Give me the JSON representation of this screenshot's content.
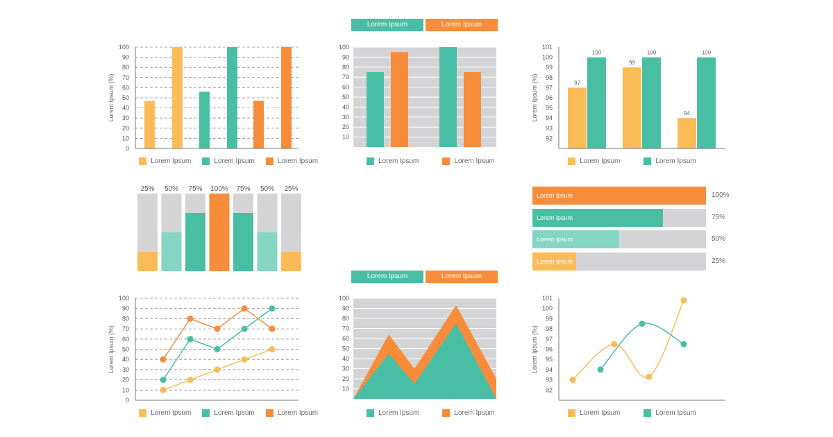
{
  "colors": {
    "yellow": "#fbbc57",
    "green": "#48bfa4",
    "orange": "#f78c3a",
    "lightgreen": "#84d5c3",
    "gray": "#d4d4d6",
    "grid": "#9a9a9a"
  },
  "chart_data": [
    {
      "id": "c1",
      "type": "bar",
      "ylabel": "Lorem Ipsum (%)",
      "ylim": [
        0,
        100
      ],
      "yticks": [
        0,
        10,
        20,
        30,
        40,
        50,
        60,
        70,
        80,
        90,
        100
      ],
      "grid": "dashed",
      "series": [
        {
          "name": "Lorem Ipsum",
          "color": "yellow",
          "values": [
            47,
            100
          ]
        },
        {
          "name": "Lorem Ipsum",
          "color": "green",
          "values": [
            56,
            100
          ]
        },
        {
          "name": "Lorem Ipsum",
          "color": "orange",
          "values": [
            47,
            100
          ]
        }
      ]
    },
    {
      "id": "c2",
      "type": "bar",
      "ylim": [
        0,
        100
      ],
      "yticks": [
        10,
        20,
        30,
        40,
        50,
        60,
        70,
        80,
        90,
        100
      ],
      "tabs": [
        "Lorem Ipsum",
        "Lorem Ipsum"
      ],
      "series": [
        {
          "name": "Lorem Ipsum",
          "color": "green",
          "values": [
            75,
            105
          ]
        },
        {
          "name": "Lorem Ipsum",
          "color": "orange",
          "values": [
            95,
            75
          ]
        }
      ]
    },
    {
      "id": "c3",
      "type": "bar",
      "ylabel": "Lorem Ipsum (%)",
      "ylim": [
        91,
        101
      ],
      "yticks": [
        92,
        93,
        94,
        95,
        96,
        97,
        98,
        99,
        100,
        101
      ],
      "series": [
        {
          "name": "Lorem Ipsum",
          "color": "yellow",
          "values": [
            97,
            99,
            94
          ]
        },
        {
          "name": "Lorem Ipsum",
          "color": "green",
          "values": [
            100,
            100,
            100
          ]
        }
      ]
    },
    {
      "id": "c4",
      "type": "bar",
      "stacked_percent": true,
      "bars": [
        {
          "label": "25%",
          "value": 25,
          "color": "yellow"
        },
        {
          "label": "50%",
          "value": 50,
          "color": "lightgreen"
        },
        {
          "label": "75%",
          "value": 75,
          "color": "green"
        },
        {
          "label": "100%",
          "value": 100,
          "color": "orange"
        },
        {
          "label": "75%",
          "value": 75,
          "color": "green"
        },
        {
          "label": "50%",
          "value": 50,
          "color": "lightgreen"
        },
        {
          "label": "25%",
          "value": 25,
          "color": "yellow"
        }
      ]
    },
    {
      "id": "c5",
      "type": "bar",
      "orientation": "horizontal",
      "bars": [
        {
          "label": "Lorem ipsum",
          "value": 100,
          "pct": "100%",
          "color": "orange"
        },
        {
          "label": "Lorem ipsum",
          "value": 75,
          "pct": "75%",
          "color": "green"
        },
        {
          "label": "Lorem ipsum",
          "value": 50,
          "pct": "50%",
          "color": "lightgreen"
        },
        {
          "label": "Lorem ipsum",
          "value": 25,
          "pct": "25%",
          "color": "yellow"
        }
      ]
    },
    {
      "id": "c6",
      "type": "line",
      "ylabel": "Lorem Ipsum (%)",
      "ylim": [
        0,
        100
      ],
      "yticks": [
        0,
        10,
        20,
        30,
        40,
        50,
        60,
        70,
        80,
        90,
        100
      ],
      "grid": "dashed",
      "series": [
        {
          "name": "Lorem Ipsum",
          "color": "yellow",
          "values": [
            10,
            20,
            30,
            40,
            50
          ]
        },
        {
          "name": "Lorem Ipsum",
          "color": "green",
          "values": [
            20,
            60,
            50,
            70,
            90
          ]
        },
        {
          "name": "Lorem Ipsum",
          "color": "orange",
          "values": [
            40,
            80,
            70,
            90,
            70
          ]
        }
      ]
    },
    {
      "id": "c7",
      "type": "area",
      "ylim": [
        0,
        100
      ],
      "yticks": [
        10,
        20,
        30,
        40,
        50,
        60,
        70,
        80,
        90,
        100
      ],
      "tabs": [
        "Lorem Ipsum",
        "Lorem Ipsum"
      ],
      "series": [
        {
          "name": "Lorem Ipsum",
          "color": "green",
          "values": [
            0,
            45,
            15,
            75,
            0
          ]
        },
        {
          "name": "Lorem Ipsum",
          "color": "orange",
          "values": [
            0,
            64,
            30,
            93,
            20
          ]
        }
      ]
    },
    {
      "id": "c8",
      "type": "line",
      "smooth": true,
      "ylabel": "Lorem Ipsum (%)",
      "ylim": [
        91,
        101
      ],
      "yticks": [
        92,
        93,
        94,
        95,
        96,
        97,
        98,
        99,
        100,
        101
      ],
      "series": [
        {
          "name": "Lorem Ipsum",
          "color": "yellow",
          "points": [
            [
              0.0,
              93.0
            ],
            [
              0.3,
              96.5
            ],
            [
              0.55,
              93.3
            ],
            [
              0.8,
              100.8
            ]
          ]
        },
        {
          "name": "Lorem Ipsum",
          "color": "green",
          "points": [
            [
              0.2,
              94.0
            ],
            [
              0.5,
              98.5
            ],
            [
              0.8,
              96.5
            ]
          ]
        }
      ]
    }
  ]
}
